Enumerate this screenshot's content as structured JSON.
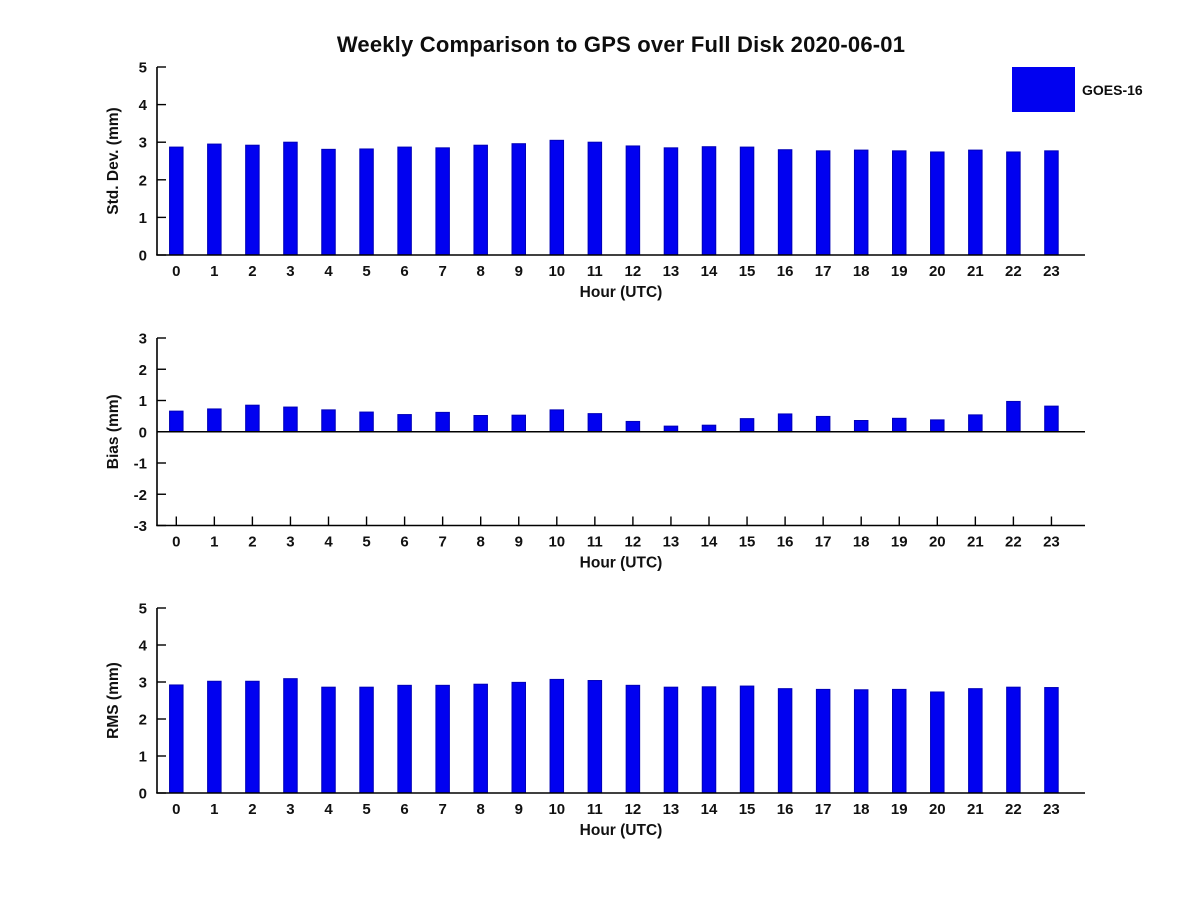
{
  "title": "Weekly Comparison to GPS over Full Disk 2020-06-01",
  "legend": {
    "label": "GOES-16",
    "swatch_color": "#0101f0",
    "position": "top-right-outside"
  },
  "colors": {
    "bar_fill": "#0101f0",
    "bar_edge": "#0000b8",
    "axis": "#000000",
    "text": "#111111",
    "background": "#ffffff"
  },
  "xlabel": "Hour (UTC)",
  "hour_labels": [
    "0",
    "1",
    "2",
    "3",
    "4",
    "5",
    "6",
    "7",
    "8",
    "9",
    "10",
    "11",
    "12",
    "13",
    "14",
    "15",
    "16",
    "17",
    "18",
    "19",
    "20",
    "21",
    "22",
    "23"
  ],
  "chart_data": [
    {
      "type": "bar",
      "panel": "std-dev",
      "title": "Weekly Comparison to GPS over Full Disk 2020-06-01",
      "ylabel": "Std. Dev. (mm)",
      "xlabel": "Hour (UTC)",
      "series": [
        {
          "name": "GOES-16",
          "values": [
            2.87,
            2.95,
            2.92,
            3.0,
            2.81,
            2.82,
            2.87,
            2.85,
            2.92,
            2.96,
            3.05,
            3.0,
            2.9,
            2.85,
            2.88,
            2.87,
            2.8,
            2.77,
            2.79,
            2.77,
            2.74,
            2.79,
            2.74,
            2.77
          ]
        }
      ],
      "categories": [
        0,
        1,
        2,
        3,
        4,
        5,
        6,
        7,
        8,
        9,
        10,
        11,
        12,
        13,
        14,
        15,
        16,
        17,
        18,
        19,
        20,
        21,
        22,
        23
      ],
      "ylim": [
        0,
        5
      ],
      "yticks": [
        0,
        1,
        2,
        3,
        4,
        5
      ],
      "grid": false,
      "legend_position": "top-right-outside"
    },
    {
      "type": "bar",
      "panel": "bias",
      "title": "",
      "ylabel": "Bias (mm)",
      "xlabel": "Hour (UTC)",
      "series": [
        {
          "name": "GOES-16",
          "values": [
            0.66,
            0.73,
            0.85,
            0.79,
            0.7,
            0.63,
            0.55,
            0.62,
            0.52,
            0.53,
            0.7,
            0.58,
            0.33,
            0.18,
            0.21,
            0.42,
            0.57,
            0.49,
            0.36,
            0.43,
            0.38,
            0.54,
            0.97,
            0.82
          ]
        }
      ],
      "categories": [
        0,
        1,
        2,
        3,
        4,
        5,
        6,
        7,
        8,
        9,
        10,
        11,
        12,
        13,
        14,
        15,
        16,
        17,
        18,
        19,
        20,
        21,
        22,
        23
      ],
      "ylim": [
        -3,
        3
      ],
      "yticks": [
        -3,
        -2,
        -1,
        0,
        1,
        2,
        3
      ],
      "grid": false,
      "zero_line": true
    },
    {
      "type": "bar",
      "panel": "rms",
      "title": "",
      "ylabel": "RMS (mm)",
      "xlabel": "Hour (UTC)",
      "series": [
        {
          "name": "GOES-16",
          "values": [
            2.92,
            3.02,
            3.02,
            3.09,
            2.86,
            2.86,
            2.91,
            2.91,
            2.94,
            2.99,
            3.07,
            3.04,
            2.91,
            2.86,
            2.87,
            2.89,
            2.82,
            2.8,
            2.79,
            2.8,
            2.73,
            2.82,
            2.86,
            2.85
          ]
        }
      ],
      "categories": [
        0,
        1,
        2,
        3,
        4,
        5,
        6,
        7,
        8,
        9,
        10,
        11,
        12,
        13,
        14,
        15,
        16,
        17,
        18,
        19,
        20,
        21,
        22,
        23
      ],
      "ylim": [
        0,
        5
      ],
      "yticks": [
        0,
        1,
        2,
        3,
        4,
        5
      ],
      "grid": false
    }
  ]
}
